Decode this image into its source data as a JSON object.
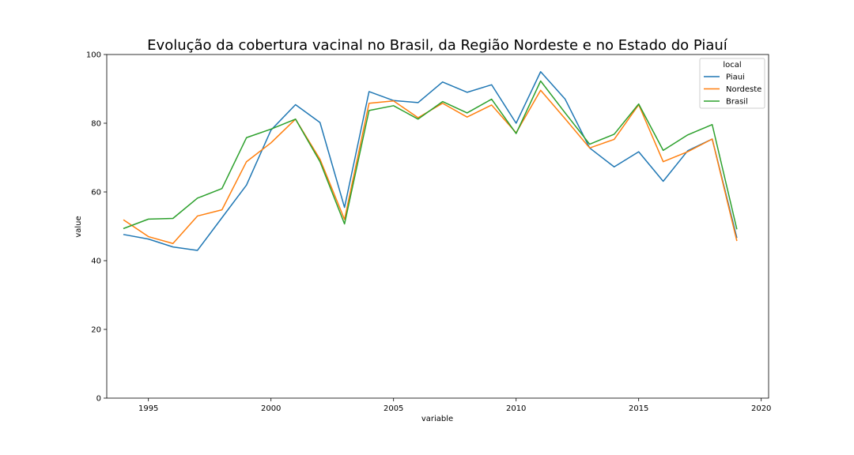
{
  "chart_data": {
    "type": "line",
    "title": "Evolução da cobertura vacinal no Brasil, da Região Nordeste e no Estado do Piauí",
    "xlabel": "variable",
    "ylabel": "value",
    "xlim": [
      1993.3,
      2020.3
    ],
    "ylim": [
      0,
      100
    ],
    "xticks": [
      1995,
      2000,
      2005,
      2010,
      2015,
      2020
    ],
    "yticks": [
      0,
      20,
      40,
      60,
      80,
      100
    ],
    "grid": false,
    "legend": {
      "title": "local",
      "position": "top-right"
    },
    "x": [
      1994,
      1995,
      1996,
      1997,
      1998,
      1999,
      2000,
      2001,
      2002,
      2003,
      2004,
      2005,
      2006,
      2007,
      2008,
      2009,
      2010,
      2011,
      2012,
      2013,
      2014,
      2015,
      2016,
      2017,
      2018,
      2019
    ],
    "series": [
      {
        "name": "Piaui",
        "color": "#1f77b4",
        "values": [
          47.6,
          46.3,
          44.0,
          43.0,
          52.5,
          62.0,
          78.0,
          85.4,
          80.2,
          55.5,
          89.2,
          86.6,
          86.0,
          92.0,
          89.0,
          91.2,
          80.0,
          95.0,
          87.0,
          72.8,
          67.3,
          71.7,
          63.1,
          72.0,
          75.4,
          46.8
        ]
      },
      {
        "name": "Nordeste",
        "color": "#ff7f0e",
        "values": [
          51.8,
          47.0,
          45.0,
          53.0,
          54.8,
          68.8,
          74.3,
          81.2,
          69.5,
          52.0,
          85.8,
          86.5,
          81.6,
          85.8,
          81.8,
          85.3,
          77.2,
          89.6,
          81.3,
          72.8,
          75.3,
          85.4,
          68.8,
          71.7,
          75.4,
          45.9
        ]
      },
      {
        "name": "Brasil",
        "color": "#2ca02c",
        "values": [
          49.4,
          52.1,
          52.3,
          58.2,
          61.0,
          75.8,
          78.3,
          81.2,
          68.8,
          50.7,
          83.7,
          85.1,
          81.2,
          86.3,
          83.0,
          87.0,
          77.0,
          92.3,
          83.0,
          73.9,
          76.8,
          85.6,
          72.1,
          76.6,
          79.6,
          49.3
        ]
      }
    ]
  }
}
